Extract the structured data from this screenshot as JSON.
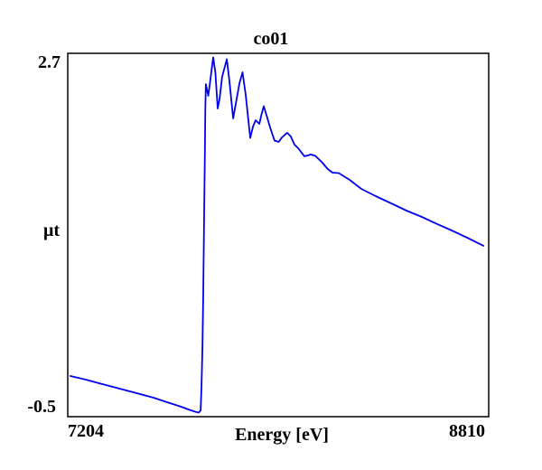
{
  "chart_data": {
    "type": "line",
    "title": "co01",
    "xlabel": "Energy [eV]",
    "ylabel": "μt",
    "xlim": [
      7204,
      8810
    ],
    "ylim": [
      -0.5,
      2.7
    ],
    "grid": false,
    "legend": false,
    "x_tick_labels": [
      "7204",
      "8810"
    ],
    "y_tick_labels": [
      "-0.5",
      "2.7"
    ],
    "line_color": "#0000ee",
    "frame_color": "#000000",
    "background_color": "#ffffff",
    "series": [
      {
        "name": "co01",
        "x": [
          7214,
          7273,
          7325,
          7376,
          7428,
          7480,
          7531,
          7583,
          7635,
          7669,
          7690,
          7704,
          7711,
          7714,
          7718,
          7721,
          7724,
          7727,
          7729,
          7731,
          7735,
          7740,
          7745,
          7759,
          7767,
          7776,
          7783,
          7793,
          7811,
          7821,
          7835,
          7845,
          7859,
          7871,
          7883,
          7900,
          7911,
          7921,
          7935,
          7943,
          7952,
          7962,
          7976,
          7993,
          8009,
          8021,
          8041,
          8055,
          8069,
          8083,
          8107,
          8121,
          8131,
          8148,
          8172,
          8196,
          8214,
          8238,
          8258,
          8279,
          8324,
          8379,
          8438,
          8496,
          8555,
          8614,
          8669,
          8728,
          8790
        ],
        "y": [
          -0.142,
          -0.174,
          -0.206,
          -0.237,
          -0.269,
          -0.301,
          -0.333,
          -0.373,
          -0.412,
          -0.44,
          -0.456,
          -0.464,
          -0.444,
          -0.253,
          0.105,
          0.582,
          1.219,
          1.816,
          2.214,
          2.429,
          2.382,
          2.326,
          2.413,
          2.664,
          2.533,
          2.214,
          2.294,
          2.493,
          2.648,
          2.453,
          2.127,
          2.254,
          2.437,
          2.533,
          2.334,
          1.956,
          2.055,
          2.111,
          2.079,
          2.159,
          2.234,
          2.159,
          2.047,
          1.932,
          1.92,
          1.96,
          2.0,
          1.968,
          1.896,
          1.864,
          1.793,
          1.801,
          1.809,
          1.797,
          1.745,
          1.681,
          1.649,
          1.645,
          1.617,
          1.586,
          1.506,
          1.442,
          1.379,
          1.315,
          1.259,
          1.196,
          1.14,
          1.076,
          1.005
        ]
      }
    ]
  }
}
